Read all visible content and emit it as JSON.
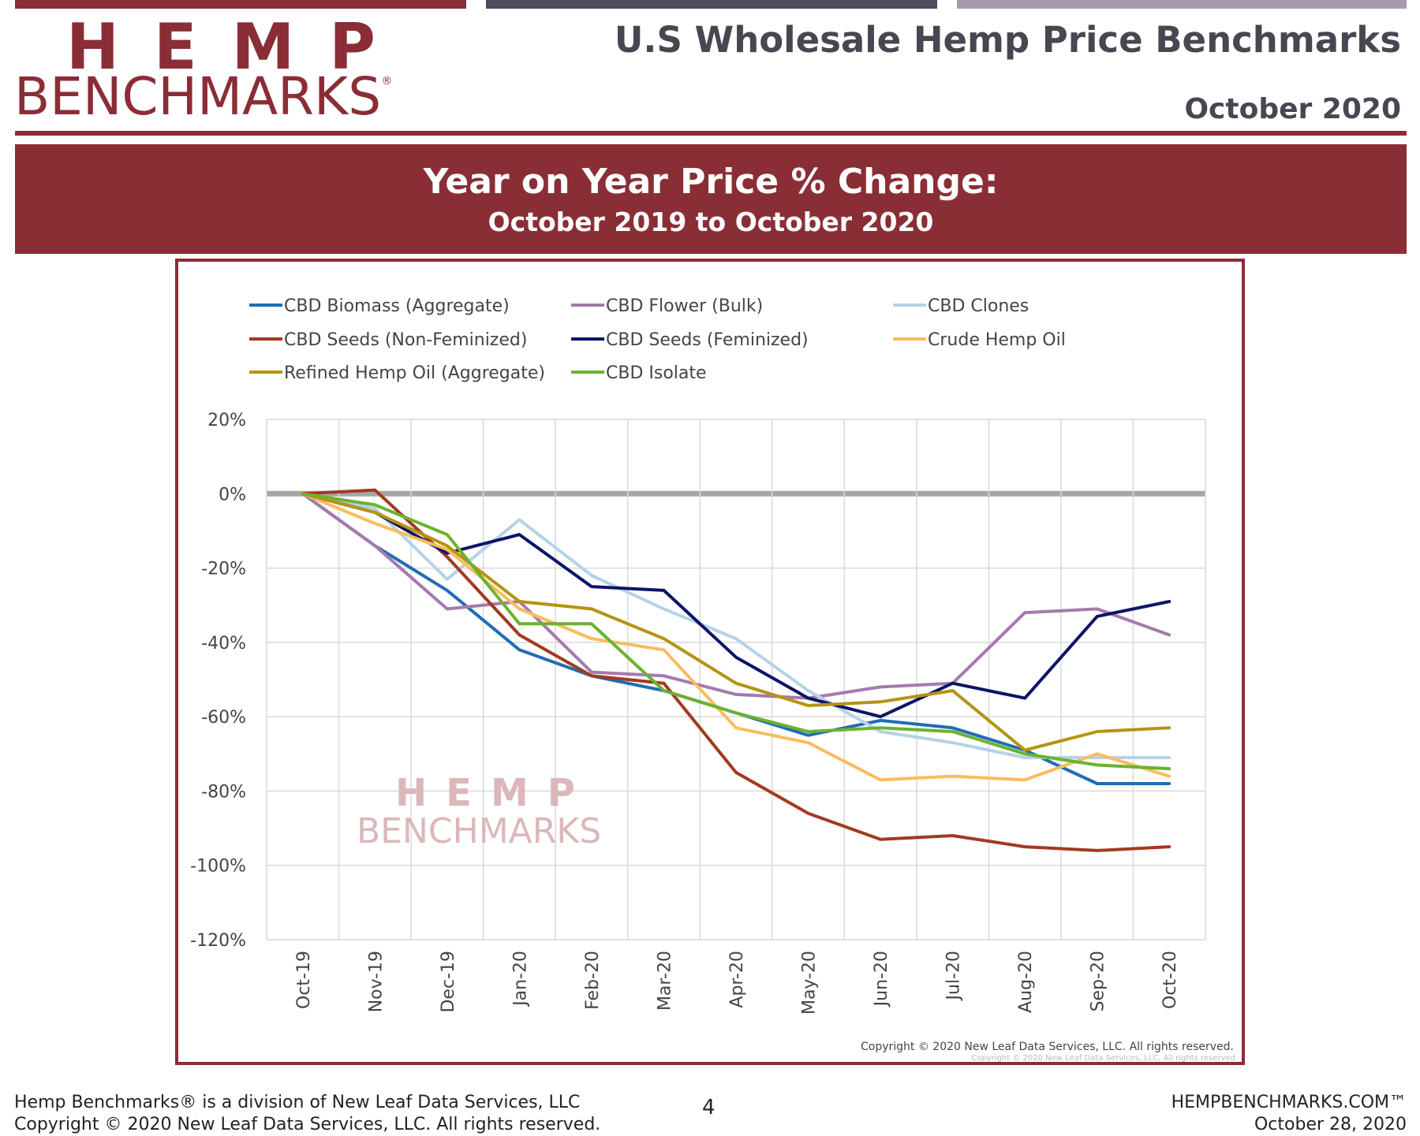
{
  "header": {
    "logo_top": "HEMP",
    "logo_bottom": "BENCHMARKS",
    "logo_reg": "®",
    "title": "U.S Wholesale Hemp Price Benchmarks",
    "date": "October 2020"
  },
  "banner": {
    "title": "Year on Year Price % Change:",
    "subtitle": "October 2019 to October 2020"
  },
  "watermark": {
    "top": "HEMP",
    "bottom": "BENCHMARKS"
  },
  "chart_copyright": "Copyright © 2020 New Leaf Data Services, LLC. All rights reserved.",
  "chart_copyright_small": "Copyright © 2020 New Leaf Data Services, LLC, All rights reserved",
  "chart_data": {
    "type": "line",
    "title": "",
    "xlabel": "",
    "ylabel": "",
    "ylim": [
      -120,
      20
    ],
    "yticks": [
      20,
      0,
      -20,
      -40,
      -60,
      -80,
      -100,
      -120
    ],
    "ytick_labels": [
      "20%",
      "0%",
      "-20%",
      "-40%",
      "-60%",
      "-80%",
      "-100%",
      "-120%"
    ],
    "grid": true,
    "legend": "top",
    "categories": [
      "Oct-19",
      "Nov-19",
      "Dec-19",
      "Jan-20",
      "Feb-20",
      "Mar-20",
      "Apr-20",
      "May-20",
      "Jun-20",
      "Jul-20",
      "Aug-20",
      "Sep-20",
      "Oct-20"
    ],
    "series": [
      {
        "name": "CBD Biomass (Aggregate)",
        "color": "#1f6db5",
        "values": [
          0,
          -14,
          -26,
          -42,
          -49,
          -53,
          -59,
          -65,
          -61,
          -63,
          -69,
          -78,
          -78
        ]
      },
      {
        "name": "CBD Flower (Bulk)",
        "color": "#a57aad",
        "values": [
          0,
          -14,
          -31,
          -29,
          -48,
          -49,
          -54,
          -55,
          -52,
          -51,
          -32,
          -31,
          -38
        ]
      },
      {
        "name": "CBD Clones",
        "color": "#b5d3e7",
        "values": [
          0,
          -4,
          -23,
          -7,
          -22,
          -31,
          -39,
          -53,
          -64,
          -67,
          -71,
          -71,
          -71
        ]
      },
      {
        "name": "CBD Seeds (Non-Feminized)",
        "color": "#a3391f",
        "values": [
          0,
          1,
          -17,
          -38,
          -49,
          -51,
          -75,
          -86,
          -93,
          -92,
          -95,
          -96,
          -95
        ]
      },
      {
        "name": "CBD Seeds (Feminized)",
        "color": "#0c1566",
        "values": [
          0,
          -5,
          -16,
          -11,
          -25,
          -26,
          -44,
          -55,
          -60,
          -51,
          -55,
          -33,
          -29
        ]
      },
      {
        "name": "Crude Hemp Oil",
        "color": "#f8bd5f",
        "values": [
          0,
          -8,
          -15,
          -31,
          -39,
          -42,
          -63,
          -67,
          -77,
          -76,
          -77,
          -70,
          -76
        ]
      },
      {
        "name": "Refined Hemp Oil (Aggregate)",
        "color": "#b59413",
        "values": [
          0,
          -5,
          -14,
          -29,
          -31,
          -39,
          -51,
          -57,
          -56,
          -53,
          -69,
          -64,
          -63
        ]
      },
      {
        "name": "CBD Isolate",
        "color": "#6cb231",
        "values": [
          0,
          -3,
          -11,
          -35,
          -35,
          -53,
          -59,
          -64,
          -63,
          -64,
          -70,
          -73,
          -74
        ]
      }
    ]
  },
  "footer": {
    "line1": "Hemp Benchmarks® is a division of New Leaf Data Services, LLC",
    "line2": "Copyright © 2020 New Leaf Data Services, LLC.  All rights reserved.",
    "page": "4",
    "site": "HEMPBENCHMARKS.COM™",
    "date": "October 28, 2020"
  }
}
